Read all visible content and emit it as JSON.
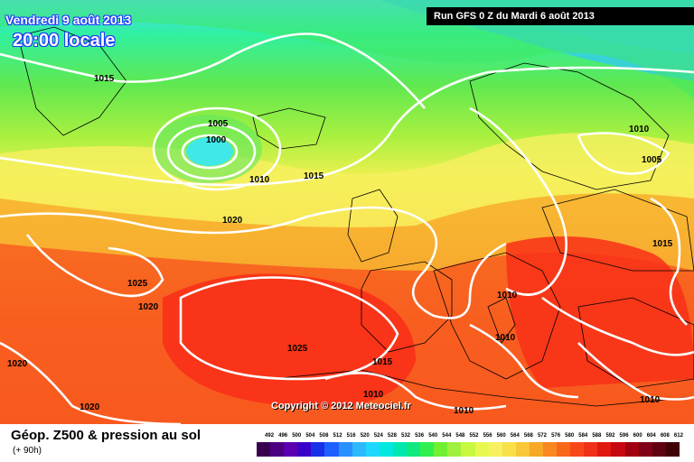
{
  "header": {
    "date": "Vendredi 9 août 2013",
    "time": "20:00 locale",
    "run": "Run GFS 0 Z du Mardi 6 août 2013"
  },
  "footer": {
    "title": "Géop. Z500 & pression au sol",
    "subtitle": "(+ 90h)",
    "copyright": "Copyright © 2012 Meteociel.fr"
  },
  "legend": {
    "ticks": [
      "492",
      "496",
      "500",
      "504",
      "508",
      "512",
      "516",
      "520",
      "524",
      "528",
      "532",
      "536",
      "540",
      "544",
      "548",
      "552",
      "556",
      "560",
      "564",
      "568",
      "572",
      "576",
      "580",
      "584",
      "588",
      "592",
      "596",
      "600",
      "604",
      "608",
      "612"
    ],
    "colors": [
      "#3a0050",
      "#4a0080",
      "#5a00b0",
      "#3800c8",
      "#1830e8",
      "#1e60ff",
      "#2a90ff",
      "#30b8ff",
      "#20d8ff",
      "#00e8e0",
      "#00e8b0",
      "#10e880",
      "#30f050",
      "#70f030",
      "#a0f040",
      "#c8f840",
      "#e8f850",
      "#f8f060",
      "#f8e048",
      "#f8c838",
      "#f8a828",
      "#f88820",
      "#f86818",
      "#f84818",
      "#f03018",
      "#e01810",
      "#c80810",
      "#a00010",
      "#800018",
      "#600010",
      "#400008"
    ]
  },
  "isobar_labels": [
    "1015",
    "1005",
    "1000",
    "1010",
    "1015",
    "1020",
    "1025",
    "1020",
    "1020",
    "1025",
    "1020",
    "1015",
    "1010",
    "1010",
    "1010",
    "1010",
    "1005",
    "1015",
    "1010",
    "1010"
  ]
}
